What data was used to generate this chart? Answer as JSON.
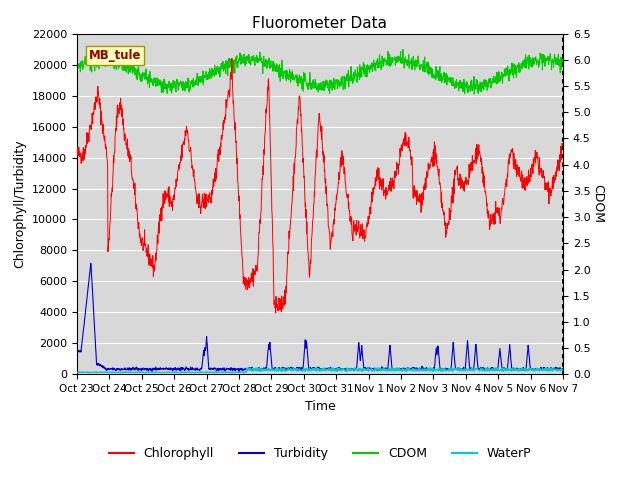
{
  "title": "Fluorometer Data",
  "xlabel": "Time",
  "ylabel_left": "Chlorophyll/Turbidity",
  "ylabel_right": "CDOM",
  "xlim": [
    0,
    345
  ],
  "ylim_left": [
    0,
    22000
  ],
  "ylim_right": [
    0.0,
    6.5
  ],
  "yticks_left": [
    0,
    2000,
    4000,
    6000,
    8000,
    10000,
    12000,
    14000,
    16000,
    18000,
    20000,
    22000
  ],
  "yticks_right": [
    0.0,
    0.5,
    1.0,
    1.5,
    2.0,
    2.5,
    3.0,
    3.5,
    4.0,
    4.5,
    5.0,
    5.5,
    6.0,
    6.5
  ],
  "xtick_labels": [
    "Oct 23",
    "Oct 24",
    "Oct 25",
    "Oct 26",
    "Oct 27",
    "Oct 28",
    "Oct 29",
    "Oct 30",
    "Oct 31",
    "Nov 1",
    "Nov 2",
    "Nov 3",
    "Nov 4",
    "Nov 5",
    "Nov 6",
    "Nov 7"
  ],
  "xtick_positions": [
    0,
    23,
    46,
    69,
    92,
    115,
    138,
    161,
    184,
    207,
    230,
    253,
    276,
    299,
    322,
    345
  ],
  "station_label": "MB_tule",
  "background_color": "#ffffff",
  "plot_bg_color": "#d8d8d8",
  "grid_color": "#ffffff",
  "colors": {
    "chlorophyll": "#ff0000",
    "turbidity": "#0000dd",
    "cdom": "#00cc00",
    "waterp": "#00cccc"
  },
  "legend_items": [
    "Chlorophyll",
    "Turbidity",
    "CDOM",
    "WaterP"
  ],
  "title_fontsize": 11,
  "label_fontsize": 9,
  "tick_fontsize": 8,
  "station_text_color": "#990000"
}
